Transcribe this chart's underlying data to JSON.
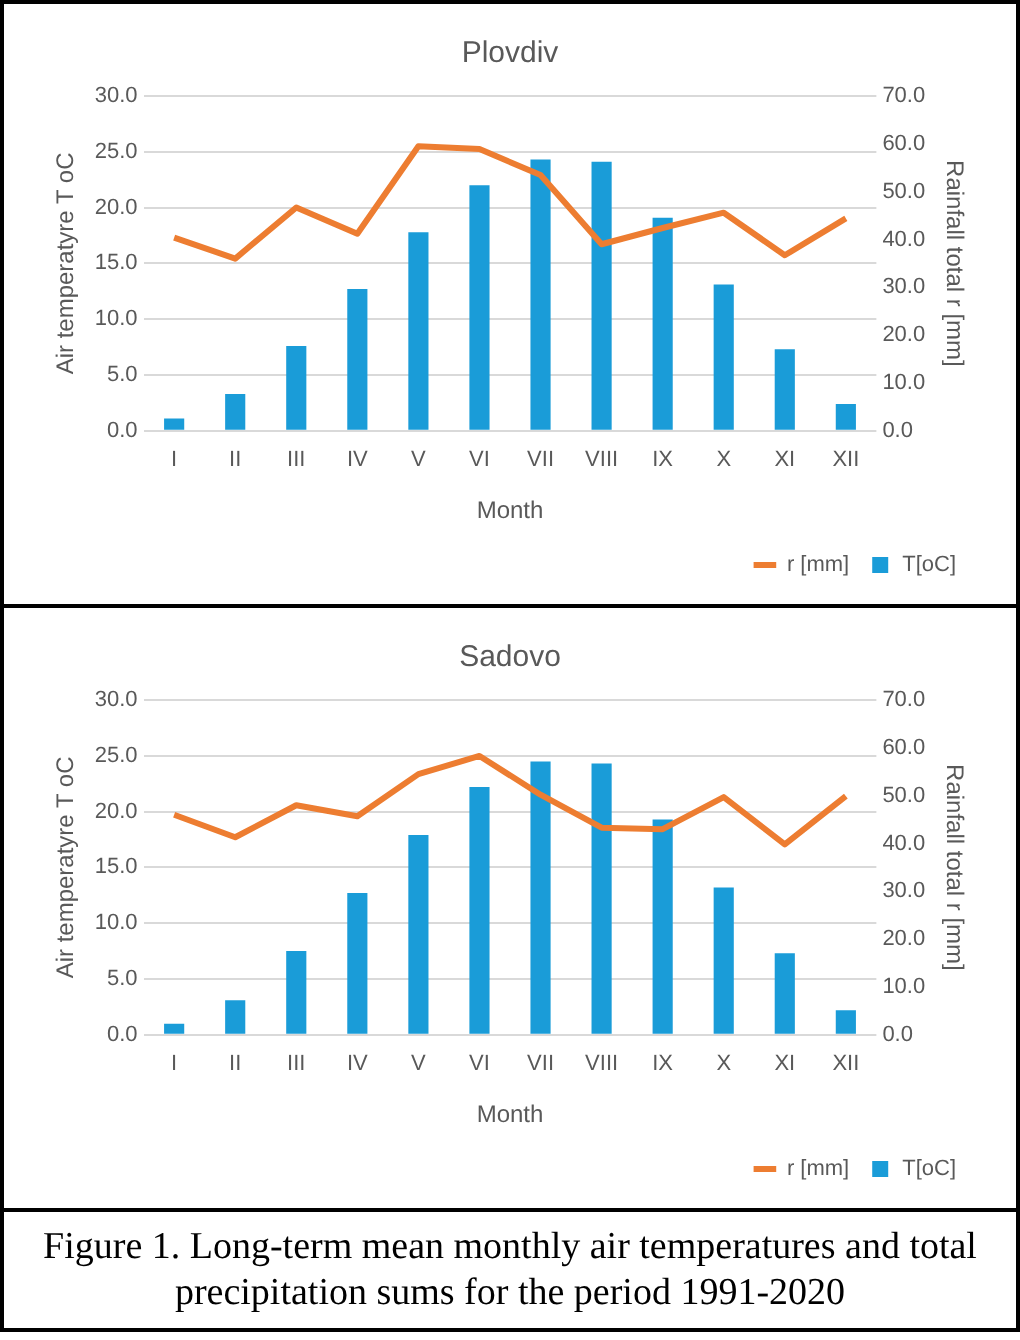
{
  "chart_data": [
    {
      "type": "bar",
      "title": "Plovdiv",
      "xlabel": "Month",
      "ylabel": "Air temperatyre T oC",
      "y2label": "Rainfall total r [mm]",
      "categories": [
        "I",
        "II",
        "III",
        "IV",
        "V",
        "VI",
        "VII",
        "VIII",
        "IX",
        "X",
        "XI",
        "XII"
      ],
      "series": [
        {
          "name": "T[oC]",
          "color": "#1a9cd8",
          "values": [
            1.1,
            3.3,
            7.6,
            12.7,
            17.8,
            22.0,
            24.3,
            24.1,
            19.1,
            13.1,
            7.3,
            2.4
          ]
        },
        {
          "name": "r [mm]",
          "type": "line",
          "axis": "y2",
          "color": "#ed7d31",
          "values": [
            40.4,
            36.0,
            46.7,
            41.2,
            59.5,
            58.9,
            53.5,
            39.0,
            42.4,
            45.6,
            36.7,
            44.4
          ]
        }
      ],
      "ylim": [
        0,
        30
      ],
      "yticks": [
        {
          "value": 0,
          "label": "0.0"
        },
        {
          "value": 5,
          "label": "5.0"
        },
        {
          "value": 10,
          "label": "10.0"
        },
        {
          "value": 15,
          "label": "15.0"
        },
        {
          "value": 20,
          "label": "20.0"
        },
        {
          "value": 25,
          "label": "25.0"
        },
        {
          "value": 30,
          "label": "30.0"
        }
      ],
      "y2lim": [
        0,
        70
      ],
      "y2ticks": [
        {
          "value": 0,
          "label": "0.0"
        },
        {
          "value": 10,
          "label": "10.0"
        },
        {
          "value": 20,
          "label": "20.0"
        },
        {
          "value": 30,
          "label": "30.0"
        },
        {
          "value": 40,
          "label": "40.0"
        },
        {
          "value": 50,
          "label": "50.0"
        },
        {
          "value": 60,
          "label": "60.0"
        },
        {
          "value": 70,
          "label": "70.0"
        }
      ],
      "grid": "y",
      "legend": "bottom right",
      "marker": "none"
    },
    {
      "type": "bar",
      "title": "Sadovo",
      "xlabel": "Month",
      "ylabel": "Air temperatyre T oC",
      "y2label": "Rainfall total r [mm]",
      "categories": [
        "I",
        "II",
        "III",
        "IV",
        "V",
        "VI",
        "VII",
        "VIII",
        "IX",
        "X",
        "XI",
        "XII"
      ],
      "series": [
        {
          "name": "T[oC]",
          "color": "#1a9cd8",
          "values": [
            1.0,
            3.1,
            7.5,
            12.7,
            17.9,
            22.2,
            24.5,
            24.3,
            19.3,
            13.2,
            7.3,
            2.2
          ]
        },
        {
          "name": "r [mm]",
          "type": "line",
          "axis": "y2",
          "color": "#ed7d31",
          "values": [
            46.0,
            41.3,
            48.0,
            45.7,
            54.5,
            58.3,
            50.2,
            43.3,
            43.0,
            49.7,
            39.8,
            49.9
          ]
        }
      ],
      "ylim": [
        0,
        30
      ],
      "yticks": [
        {
          "value": 0,
          "label": "0.0"
        },
        {
          "value": 5,
          "label": "5.0"
        },
        {
          "value": 10,
          "label": "10.0"
        },
        {
          "value": 15,
          "label": "15.0"
        },
        {
          "value": 20,
          "label": "20.0"
        },
        {
          "value": 25,
          "label": "25.0"
        },
        {
          "value": 30,
          "label": "30.0"
        }
      ],
      "y2lim": [
        0,
        70
      ],
      "y2ticks": [
        {
          "value": 0,
          "label": "0.0"
        },
        {
          "value": 10,
          "label": "10.0"
        },
        {
          "value": 20,
          "label": "20.0"
        },
        {
          "value": 30,
          "label": "30.0"
        },
        {
          "value": 40,
          "label": "40.0"
        },
        {
          "value": 50,
          "label": "50.0"
        },
        {
          "value": 60,
          "label": "60.0"
        },
        {
          "value": 70,
          "label": "70.0"
        }
      ],
      "grid": "y",
      "legend": "bottom right",
      "marker": "none",
      "annotations": [
        "Figure 1. Long-term mean monthly air temperatures and total precipitation sums for the period 1991-2020"
      ]
    }
  ]
}
